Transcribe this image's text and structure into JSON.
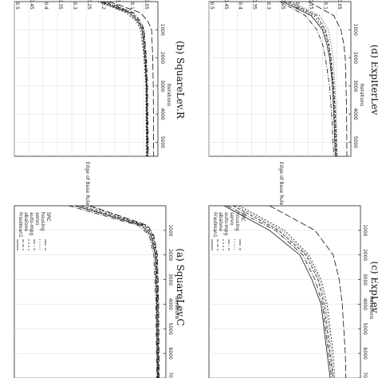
{
  "figure": {
    "rotation": "90deg clockwise",
    "colors": {
      "ink": "#222222",
      "grid": "#d9d9d9",
      "series": "#111111"
    }
  },
  "chart_data": [
    {
      "panel": "a",
      "caption": "(a) SquareLev.C",
      "type": "line",
      "xlabel": "Iterations",
      "ylabel": "",
      "xlim": [
        0,
        7000
      ],
      "ylim": [
        0,
        0.5
      ],
      "x_ticks": [
        "1000",
        "2000",
        "3000",
        "4000",
        "5000",
        "6000",
        "7000"
      ],
      "y_ticks": [],
      "grid": true,
      "legend_position": "top-left",
      "legend": [
        "Friedman1",
        "abalone",
        "auto-mpg",
        "servo",
        "housing",
        "SRC"
      ],
      "series": [
        {
          "name": "Friedman1",
          "x": [
            0,
            800,
            1200,
            2000,
            4000,
            7000
          ],
          "y": [
            0.3,
            0.08,
            0.05,
            0.035,
            0.03,
            0.028
          ]
        },
        {
          "name": "abalone",
          "x": [
            0,
            800,
            1200,
            2000,
            4000,
            7000
          ],
          "y": [
            0.28,
            0.07,
            0.045,
            0.032,
            0.027,
            0.025
          ]
        },
        {
          "name": "auto-mpg",
          "x": [
            0,
            800,
            1200,
            2000,
            4000,
            7000
          ],
          "y": [
            0.26,
            0.065,
            0.042,
            0.03,
            0.026,
            0.024
          ]
        },
        {
          "name": "servo",
          "x": [
            0,
            800,
            1200,
            2000,
            4000,
            7000
          ],
          "y": [
            0.32,
            0.09,
            0.055,
            0.04,
            0.033,
            0.03
          ]
        },
        {
          "name": "housing",
          "x": [
            0,
            800,
            1200,
            2000,
            4000,
            7000
          ],
          "y": [
            0.29,
            0.075,
            0.048,
            0.034,
            0.029,
            0.026
          ]
        },
        {
          "name": "SRC",
          "x": [
            0,
            800,
            1200,
            2000,
            4000,
            7000
          ],
          "y": [
            0.25,
            0.06,
            0.04,
            0.028,
            0.024,
            0.022
          ]
        }
      ]
    },
    {
      "panel": "b",
      "caption": "(b) SquareLev.R",
      "type": "line",
      "xlabel": "Iterations",
      "ylabel": "Edge of Base Rule",
      "xlim": [
        0,
        5500
      ],
      "ylim": [
        0,
        0.5
      ],
      "x_ticks": [
        "1000",
        "2000",
        "3000",
        "4000",
        "5000"
      ],
      "y_ticks": [
        "0.05",
        "0.1",
        "0.15",
        "0.2",
        "0.25",
        "0.3",
        "0.35",
        "0.4",
        "0.45",
        "0.5"
      ],
      "grid": true,
      "legend": [],
      "series": [
        {
          "name": "Friedman1",
          "x": [
            0,
            400,
            700,
            1000,
            2000,
            3000,
            5500
          ],
          "y": [
            0.2,
            0.1,
            0.07,
            0.055,
            0.045,
            0.04,
            0.038
          ]
        },
        {
          "name": "abalone",
          "x": [
            0,
            400,
            700,
            1000,
            2000,
            3000,
            5500
          ],
          "y": [
            0.19,
            0.09,
            0.065,
            0.05,
            0.042,
            0.038,
            0.035
          ]
        },
        {
          "name": "auto-mpg",
          "x": [
            0,
            400,
            700,
            1000,
            2000,
            3000,
            5500
          ],
          "y": [
            0.21,
            0.11,
            0.075,
            0.06,
            0.048,
            0.042,
            0.04
          ]
        },
        {
          "name": "servo",
          "x": [
            0,
            400,
            700,
            1000,
            2000,
            3000,
            5500
          ],
          "y": [
            0.18,
            0.085,
            0.06,
            0.048,
            0.04,
            0.036,
            0.033
          ]
        },
        {
          "name": "housing",
          "x": [
            0,
            400,
            700,
            1000,
            2000,
            3000,
            5500
          ],
          "y": [
            0.2,
            0.095,
            0.068,
            0.052,
            0.044,
            0.039,
            0.036
          ]
        },
        {
          "name": "SRC",
          "x": [
            0,
            400,
            700,
            1000,
            2000,
            3000,
            5500
          ],
          "y": [
            0.17,
            0.06,
            0.035,
            0.022,
            0.018,
            0.016,
            0.015
          ]
        }
      ]
    },
    {
      "panel": "c",
      "caption": "(c) ExpLev",
      "type": "line",
      "xlabel": "Iterations",
      "ylabel": "",
      "xlim": [
        0,
        7000
      ],
      "ylim": [
        0,
        0.5
      ],
      "x_ticks": [
        "1000",
        "2000",
        "3000",
        "4000",
        "5000",
        "6000",
        "7000"
      ],
      "y_ticks": [],
      "grid": true,
      "legend_position": "top-left",
      "legend": [
        "Friedman1",
        "abalone",
        "auto-mpg",
        "servo",
        "housing",
        "SRC"
      ],
      "series": [
        {
          "name": "Friedman1",
          "x": [
            0,
            1000,
            2000,
            3000,
            4000,
            5000,
            6000,
            7000
          ],
          "y": [
            0.45,
            0.3,
            0.2,
            0.16,
            0.13,
            0.12,
            0.11,
            0.1
          ]
        },
        {
          "name": "abalone",
          "x": [
            0,
            1000,
            2000,
            3000,
            4000,
            5000,
            6000,
            7000
          ],
          "y": [
            0.42,
            0.27,
            0.18,
            0.14,
            0.12,
            0.11,
            0.1,
            0.09
          ]
        },
        {
          "name": "auto-mpg",
          "x": [
            0,
            1000,
            2000,
            3000,
            4000,
            5000,
            6000,
            7000
          ],
          "y": [
            0.4,
            0.25,
            0.17,
            0.13,
            0.11,
            0.1,
            0.09,
            0.085
          ]
        },
        {
          "name": "servo",
          "x": [
            0,
            1000,
            2000,
            3000,
            4000,
            5000,
            6000,
            7000
          ],
          "y": [
            0.44,
            0.28,
            0.19,
            0.15,
            0.125,
            0.115,
            0.105,
            0.095
          ]
        },
        {
          "name": "housing",
          "x": [
            0,
            1000,
            2000,
            3000,
            4000,
            5000,
            6000,
            7000
          ],
          "y": [
            0.41,
            0.26,
            0.175,
            0.135,
            0.115,
            0.105,
            0.095,
            0.09
          ]
        },
        {
          "name": "SRC",
          "x": [
            0,
            1000,
            2000,
            3000,
            4000,
            5000,
            6000,
            7000
          ],
          "y": [
            0.3,
            0.15,
            0.09,
            0.07,
            0.06,
            0.055,
            0.05,
            0.048
          ]
        }
      ]
    },
    {
      "panel": "d",
      "caption": "(d) ExpIterLev",
      "type": "line",
      "xlabel": "Iterations",
      "ylabel": "Edge of Base Rule",
      "xlim": [
        0,
        5500
      ],
      "ylim": [
        0,
        0.5
      ],
      "x_ticks": [
        "1000",
        "2000",
        "3000",
        "4000",
        "5000"
      ],
      "y_ticks": [
        "0.05",
        "0.1",
        "0.15",
        "0.2",
        "0.25",
        "0.3",
        "0.35",
        "0.4",
        "0.45",
        "0.5"
      ],
      "grid": true,
      "legend": [],
      "series": [
        {
          "name": "Friedman1",
          "x": [
            0,
            500,
            1000,
            1500,
            2000,
            3000,
            4000,
            5500
          ],
          "y": [
            0.24,
            0.14,
            0.1,
            0.085,
            0.075,
            0.065,
            0.06,
            0.055
          ]
        },
        {
          "name": "abalone",
          "x": [
            0,
            500,
            1000,
            1500,
            2000,
            3000,
            4000,
            5500
          ],
          "y": [
            0.22,
            0.12,
            0.09,
            0.078,
            0.07,
            0.06,
            0.055,
            0.05
          ]
        },
        {
          "name": "auto-mpg",
          "x": [
            0,
            500,
            1000,
            1500,
            2000,
            3000,
            4000,
            5500
          ],
          "y": [
            0.23,
            0.13,
            0.095,
            0.08,
            0.072,
            0.063,
            0.058,
            0.052
          ]
        },
        {
          "name": "servo",
          "x": [
            0,
            500,
            1000,
            1500,
            2000,
            3000,
            4000,
            5500
          ],
          "y": [
            0.25,
            0.16,
            0.12,
            0.1,
            0.09,
            0.075,
            0.068,
            0.06
          ]
        },
        {
          "name": "housing",
          "x": [
            0,
            500,
            1000,
            1500,
            2000,
            3000,
            4000,
            5500
          ],
          "y": [
            0.21,
            0.11,
            0.08,
            0.07,
            0.063,
            0.056,
            0.052,
            0.048
          ]
        },
        {
          "name": "SRC",
          "x": [
            0,
            500,
            1000,
            1500,
            2000,
            3000,
            4000,
            5500
          ],
          "y": [
            0.15,
            0.06,
            0.035,
            0.025,
            0.02,
            0.017,
            0.015,
            0.014
          ]
        }
      ]
    }
  ]
}
